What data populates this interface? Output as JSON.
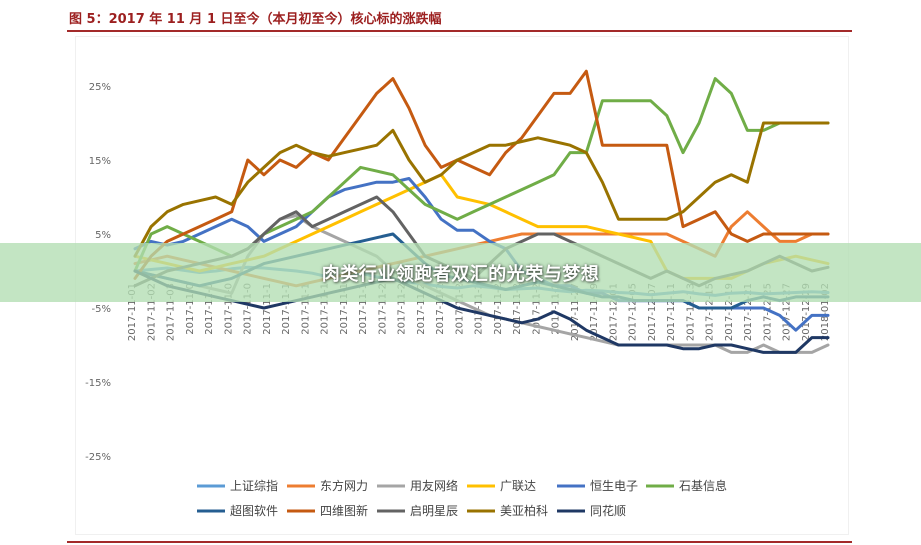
{
  "figure_title": "图 5：2017 年 11 月 1 日至今（本月初至今）核心标的涨跌幅",
  "banner_text": "肉类行业领跑者双汇的光荣与梦想",
  "chart_data": {
    "type": "line",
    "title": "",
    "xlabel": "",
    "ylabel": "",
    "ylim": [
      -25,
      28
    ],
    "y_ticks": [
      25,
      15,
      5,
      -5,
      -15,
      -25
    ],
    "y_tick_labels": [
      "25%",
      "15%",
      "5%",
      "-5%",
      "-15%",
      "-25%"
    ],
    "grid": false,
    "legend_position": "bottom",
    "x": [
      "2017-11-01",
      "2017-11-02",
      "2017-11-03",
      "2017-11-06",
      "2017-11-07",
      "2017-11-08",
      "2017-11-09",
      "2017-11-10",
      "2017-11-13",
      "2017-11-14",
      "2017-11-15",
      "2017-11-16",
      "2017-11-17",
      "2017-11-20",
      "2017-11-21",
      "2017-11-22",
      "2017-11-23",
      "2017-11-24",
      "2017-11-27",
      "2017-11-28",
      "2017-11-29",
      "2017-11-30",
      "2017-12-01",
      "2017-12-04",
      "2017-12-05",
      "2017-12-06",
      "2017-12-07",
      "2017-12-08",
      "2017-12-11",
      "2017-12-12",
      "2017-12-13",
      "2017-12-14",
      "2017-12-15",
      "2017-12-18",
      "2017-12-19",
      "2017-12-20",
      "2017-12-21",
      "2017-12-22",
      "2017-12-25",
      "2017-12-26",
      "2017-12-27",
      "2017-12-28",
      "2017-12-29",
      "2018-01-02"
    ],
    "x_tick_labels": [
      "2017-11-01",
      "2017-11-02",
      "2017-11-03",
      "2017-11-0",
      "2017-11-0",
      "2017-11-0",
      "2017-11-0",
      "2017-11-1",
      "2017-11-1",
      "2017-11-1",
      "2017-11-1",
      "2017-11-1",
      "2017-11-1",
      "2017-11-2",
      "2017-11-2",
      "2017-11-2",
      "2017-11-2",
      "2017-11-2",
      "2017-11-2",
      "2017-11-2",
      "2017-11-2",
      "2017-11-2",
      "2017-11-2",
      "2017-11-27",
      "2017-11-29",
      "2017-12-01",
      "2017-12-05",
      "2017-12-07",
      "2017-12-11",
      "2017-12-13",
      "2017-12-15",
      "2017-12-19",
      "2017-12-21",
      "2017-12-25",
      "2017-12-27",
      "2017-12-29",
      "2018-01-02"
    ],
    "series": [
      {
        "name": "上证综指",
        "color": "#5b9bd5",
        "values": [
          0,
          0.2,
          0.4,
          0.1,
          -0.2,
          0,
          0.3,
          0.5,
          0.4,
          0.2,
          0,
          -0.3,
          -0.8,
          -0.5,
          -0.3,
          -0.8,
          -1.2,
          -1.5,
          -1.8,
          -2.1,
          -2.3,
          -2.0,
          -2.2,
          -2.5,
          -2.4,
          -2.3,
          -2.6,
          -2.8,
          -2.6,
          -2.7,
          -2.9,
          -3.0,
          -3.2,
          -3.0,
          -2.8,
          -3.1,
          -3.3,
          -3.0,
          -2.9,
          -3.1,
          -3.0,
          -2.9,
          -2.8,
          -2.9
        ]
      },
      {
        "name": "东方网力",
        "color": "#ed7d31",
        "values": [
          1,
          1.5,
          2,
          1.5,
          1,
          0.5,
          0,
          -0.5,
          -1,
          -1.5,
          -2,
          -1.5,
          -1,
          -0.5,
          0,
          0.5,
          1,
          1.5,
          2,
          2.5,
          3,
          3.5,
          4,
          4.5,
          5,
          5,
          5,
          5,
          5,
          5,
          5,
          5,
          5,
          5,
          4,
          3,
          2,
          6,
          8,
          6,
          4,
          4,
          5,
          5
        ]
      },
      {
        "name": "用友网络",
        "color": "#a5a5a5",
        "values": [
          0,
          -0.5,
          -1,
          -1.5,
          -2,
          -2.5,
          -3,
          2,
          5,
          7,
          7.5,
          6,
          5,
          4,
          3,
          2,
          0,
          -1,
          -2,
          -3,
          -4,
          -5,
          -6,
          -6.5,
          -7,
          -7.5,
          -8,
          -8.5,
          -9,
          -9.5,
          -10,
          -10,
          -10,
          -10,
          -10,
          -10,
          -10,
          -11,
          -11,
          -10,
          -11,
          -11,
          -11,
          -10
        ]
      },
      {
        "name": "广联达",
        "color": "#ffc000",
        "values": [
          2,
          1.5,
          1,
          0.5,
          0,
          0.5,
          1,
          1.5,
          2,
          3,
          4,
          5,
          6,
          7,
          8,
          9,
          10,
          11,
          12,
          13,
          10,
          9.5,
          9,
          8,
          7,
          6,
          6,
          6,
          6,
          5.5,
          5,
          4.5,
          4,
          0,
          -1,
          -1,
          -1,
          -1,
          0,
          1,
          1.5,
          2,
          1.5,
          1
        ]
      },
      {
        "name": "恒生电子",
        "color": "#4472c4",
        "values": [
          3,
          4,
          3.5,
          4,
          5,
          6,
          7,
          6,
          4,
          5,
          6,
          8,
          10,
          11,
          11.5,
          12,
          12,
          12.5,
          10,
          7,
          5.5,
          5.5,
          4,
          3,
          0,
          -1,
          -2,
          -2,
          -3,
          -3,
          -4,
          -4,
          -4,
          -4,
          -4,
          -5,
          -5,
          -5,
          -5,
          -5,
          -6,
          -8,
          -6,
          -6
        ]
      },
      {
        "name": "石基信息",
        "color": "#70ad47",
        "values": [
          0,
          5,
          6,
          5,
          4,
          3,
          2,
          3,
          5,
          6,
          7,
          8,
          10,
          12,
          14,
          13.5,
          13,
          11,
          9,
          8,
          7,
          8,
          9,
          10,
          11,
          12,
          13,
          16,
          16,
          23,
          23,
          23,
          23,
          21,
          16,
          20,
          26,
          24,
          19,
          19,
          20,
          20,
          20,
          20
        ]
      },
      {
        "name": "超图软件",
        "color": "#255e91",
        "values": [
          0,
          -0.5,
          -1,
          -1.5,
          -2,
          -1.5,
          -1,
          0,
          1,
          1.5,
          2,
          2.5,
          3,
          3.5,
          4,
          4.5,
          5,
          3,
          1,
          -0.5,
          -1,
          -1.5,
          -2,
          -2.5,
          -2,
          -1.5,
          -2,
          -2.5,
          -3,
          -3.5,
          -3.5,
          -4,
          -4,
          -4,
          -4,
          -5,
          -5,
          -5,
          -4,
          -3.5,
          -4,
          -3.5,
          -3.5,
          -3.5
        ]
      },
      {
        "name": "四维图新",
        "color": "#c55a11",
        "values": [
          -1,
          2,
          4,
          5,
          6,
          7,
          8,
          15,
          13,
          15,
          14,
          16,
          15,
          18,
          21,
          24,
          26,
          22,
          17,
          14,
          15,
          14,
          13,
          16,
          18,
          21,
          24,
          24,
          27,
          17,
          17,
          17,
          17,
          17,
          6,
          7,
          8,
          5,
          4,
          5,
          5,
          5,
          5,
          5
        ]
      },
      {
        "name": "启明星辰",
        "color": "#636363",
        "values": [
          -2,
          -1,
          0,
          0.5,
          1,
          1.5,
          2,
          3,
          5,
          7,
          8,
          6,
          7,
          8,
          9,
          10,
          8,
          5,
          2,
          1,
          0,
          -1,
          1,
          3,
          4,
          5,
          5,
          4,
          3,
          2,
          1,
          0,
          -1,
          0,
          -1,
          -2,
          -1,
          -0.5,
          0,
          1,
          2,
          1,
          0,
          0.5
        ]
      },
      {
        "name": "美亚柏科",
        "color": "#997300",
        "values": [
          2,
          6,
          8,
          9,
          9.5,
          10,
          9,
          12,
          14,
          16,
          17,
          16,
          15.5,
          16,
          16.5,
          17,
          19,
          15,
          12,
          13,
          15,
          16,
          17,
          17,
          17.5,
          18,
          17.5,
          17,
          16,
          12,
          7,
          7,
          7,
          7,
          8,
          10,
          12,
          13,
          12,
          20,
          20,
          20,
          20,
          20
        ]
      },
      {
        "name": "同花顺",
        "color": "#1f3864",
        "values": [
          0,
          -1,
          -2,
          -2.5,
          -3,
          -3.5,
          -4,
          -4.5,
          -5,
          -4.5,
          -4,
          -3.5,
          -3,
          -2.5,
          -2,
          -1.5,
          -1,
          -2,
          -3,
          -4,
          -5,
          -5.5,
          -6,
          -6.5,
          -7,
          -6.5,
          -5.5,
          -6.5,
          -8,
          -9,
          -10,
          -10,
          -10,
          -10,
          -10.5,
          -10.5,
          -10,
          -10,
          -10.5,
          -11,
          -11,
          -11,
          -9,
          -9
        ]
      }
    ]
  }
}
